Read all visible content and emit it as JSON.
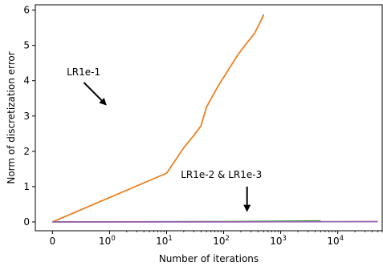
{
  "chart_data": {
    "type": "line",
    "title": "",
    "xlabel": "Number of iterations",
    "ylabel": "Norm of discretization error",
    "x_scale": "symlog",
    "xlim": [
      -0.3,
      60000
    ],
    "ylim": [
      -0.25,
      6.15
    ],
    "grid": false,
    "x_ticks": [
      {
        "value": 0,
        "label": "0"
      },
      {
        "value": 1,
        "label": "10",
        "exp": "0"
      },
      {
        "value": 10,
        "label": "10",
        "exp": "1"
      },
      {
        "value": 100,
        "label": "10",
        "exp": "2"
      },
      {
        "value": 1000,
        "label": "10",
        "exp": "3"
      },
      {
        "value": 10000,
        "label": "10",
        "exp": "4"
      }
    ],
    "y_ticks": [
      {
        "value": 0,
        "label": "0"
      },
      {
        "value": 1,
        "label": "1"
      },
      {
        "value": 2,
        "label": "2"
      },
      {
        "value": 3,
        "label": "3"
      },
      {
        "value": 4,
        "label": "4"
      },
      {
        "value": 5,
        "label": "5"
      },
      {
        "value": 6,
        "label": "6"
      }
    ],
    "series": [
      {
        "color": "#1f77b4",
        "x": [
          0,
          10,
          20,
          30,
          40,
          50,
          80,
          120,
          180,
          250,
          350,
          450,
          500
        ],
        "y": [
          0,
          1.38,
          2.1,
          2.45,
          2.72,
          3.25,
          3.85,
          4.3,
          4.75,
          5.05,
          5.35,
          5.7,
          5.87
        ]
      },
      {
        "color": "#ff7f0e",
        "x": [
          0,
          10,
          20,
          30,
          40,
          50,
          80,
          120,
          180,
          250,
          350,
          450,
          500
        ],
        "y": [
          0,
          1.38,
          2.1,
          2.45,
          2.72,
          3.25,
          3.85,
          4.3,
          4.75,
          5.05,
          5.35,
          5.7,
          5.85
        ]
      },
      {
        "color": "#2ca02c",
        "x": [
          0,
          1,
          100,
          1000,
          5000
        ],
        "y": [
          0,
          0.003,
          0.01,
          0.02,
          0.03
        ]
      },
      {
        "color": "#d62728",
        "x": [
          0,
          1,
          100,
          1000,
          10000,
          50000
        ],
        "y": [
          0,
          0.001,
          0.003,
          0.005,
          0.008,
          0.01
        ]
      },
      {
        "color": "#9467bd",
        "x": [
          0,
          1,
          100,
          1000,
          10000,
          50000
        ],
        "y": [
          0,
          0.001,
          0.002,
          0.004,
          0.006,
          0.008
        ]
      }
    ],
    "annotations": [
      {
        "text": "LR1e-1",
        "tx": 0.25,
        "ty": 4.15,
        "ax_from": 0.55,
        "ay_from": 3.95,
        "ax_to": 0.95,
        "ay_to": 3.3
      },
      {
        "text": "LR1e-2  &  LR1e-3",
        "tx": 2.25,
        "ty": 1.25,
        "ax_from": 3.41,
        "ay_from": 1.0,
        "ax_to": 3.41,
        "ay_to": 0.28
      }
    ]
  }
}
